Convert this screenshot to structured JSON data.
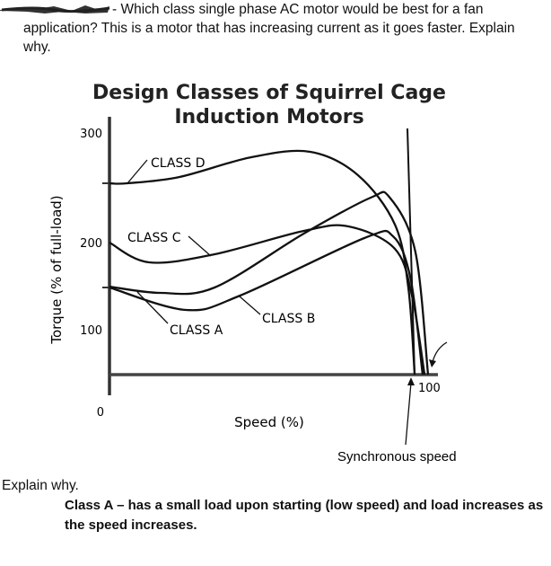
{
  "question": {
    "line1": "- Which class single phase AC motor would be best for a fan",
    "line2": "application?  This is a motor that has increasing current as it goes faster.  Explain",
    "line3": "why."
  },
  "answer": {
    "prompt": "Explain why.",
    "line1": "Class A – has a small load upon starting (low speed) and load increases as",
    "line2": "the speed increases."
  },
  "chart_data": {
    "type": "line",
    "title": [
      "Design Classes of Squirrel Cage",
      "Induction Motors"
    ],
    "xlabel": "Speed (%)",
    "ylabel": "Torque (% of full-load)",
    "yticks": [
      "300",
      "200",
      "100",
      "0"
    ],
    "xticks": [
      "100"
    ],
    "annotation": "Synchronous speed",
    "grid": false,
    "series": [
      {
        "name": "CLASS D",
        "points": [
          [
            0,
            266
          ],
          [
            5.6,
            266
          ],
          [
            22,
            273
          ],
          [
            44.5,
            295
          ],
          [
            63,
            301
          ],
          [
            78,
            275
          ],
          [
            89.6,
            220
          ],
          [
            93.8,
            150
          ],
          [
            95.8,
            53
          ]
        ]
      },
      {
        "name": "CLASS C",
        "points": [
          [
            0,
            200
          ],
          [
            12.4,
            178
          ],
          [
            33,
            187
          ],
          [
            61,
            213
          ],
          [
            75,
            218
          ],
          [
            89.6,
            193
          ],
          [
            95,
            140
          ],
          [
            98.9,
            53
          ]
        ]
      },
      {
        "name": "CLASS B",
        "points": [
          [
            0,
            151
          ],
          [
            16,
            144
          ],
          [
            33,
            150
          ],
          [
            61,
            210
          ],
          [
            82,
            250
          ],
          [
            88,
            250
          ],
          [
            96,
            190
          ],
          [
            100,
            53
          ]
        ]
      },
      {
        "name": "CLASS A",
        "points": [
          [
            0,
            150
          ],
          [
            24,
            125
          ],
          [
            41,
            141
          ],
          [
            80,
            205
          ],
          [
            89,
            207
          ],
          [
            94.5,
            160
          ],
          [
            98.3,
            53
          ]
        ]
      }
    ]
  }
}
